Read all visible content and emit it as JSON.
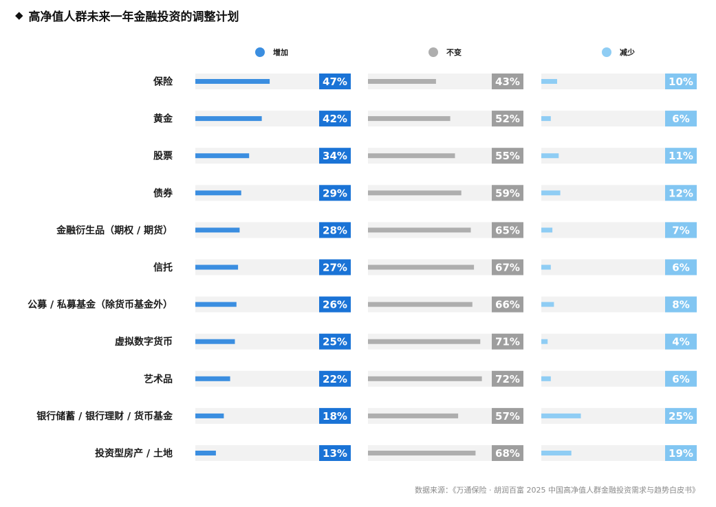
{
  "header": {
    "title_icon": "◆",
    "title": "高净值人群未来一年金融投资的调整计划"
  },
  "chart_data": {
    "type": "bar",
    "title": "高净值人群未来一年金融投资的调整计划",
    "xlabel": "",
    "ylabel": "",
    "ylim": [
      0,
      100
    ],
    "unit": "%",
    "legend_position": "top",
    "categories": [
      "保险",
      "黄金",
      "股票",
      "债券",
      "金融衍生品（期权 / 期货）",
      "信托",
      "公募 / 私募基金（除货币基金外）",
      "虚拟数字货币",
      "艺术品",
      "银行储蓄 / 银行理财 / 货币基金",
      "投资型房产 / 土地"
    ],
    "series": [
      {
        "name": "增加",
        "color": "#3b8ee0",
        "label_bg": "#1a73d6",
        "values": [
          47,
          42,
          34,
          29,
          28,
          27,
          26,
          25,
          22,
          18,
          13
        ]
      },
      {
        "name": "不变",
        "color": "#aeaeae",
        "label_bg": "#9e9e9e",
        "values": [
          43,
          52,
          55,
          59,
          65,
          67,
          66,
          71,
          72,
          57,
          68
        ]
      },
      {
        "name": "减少",
        "color": "#8fcdf4",
        "label_bg": "#82c6f2",
        "values": [
          10,
          6,
          11,
          12,
          7,
          6,
          8,
          4,
          6,
          25,
          19
        ]
      }
    ],
    "track_color": "#f2f2f2"
  },
  "footer": {
    "source": "数据来源：《万通保险 · 胡润百富 2025 中国高净值人群金融投资需求与趋势白皮书》"
  }
}
